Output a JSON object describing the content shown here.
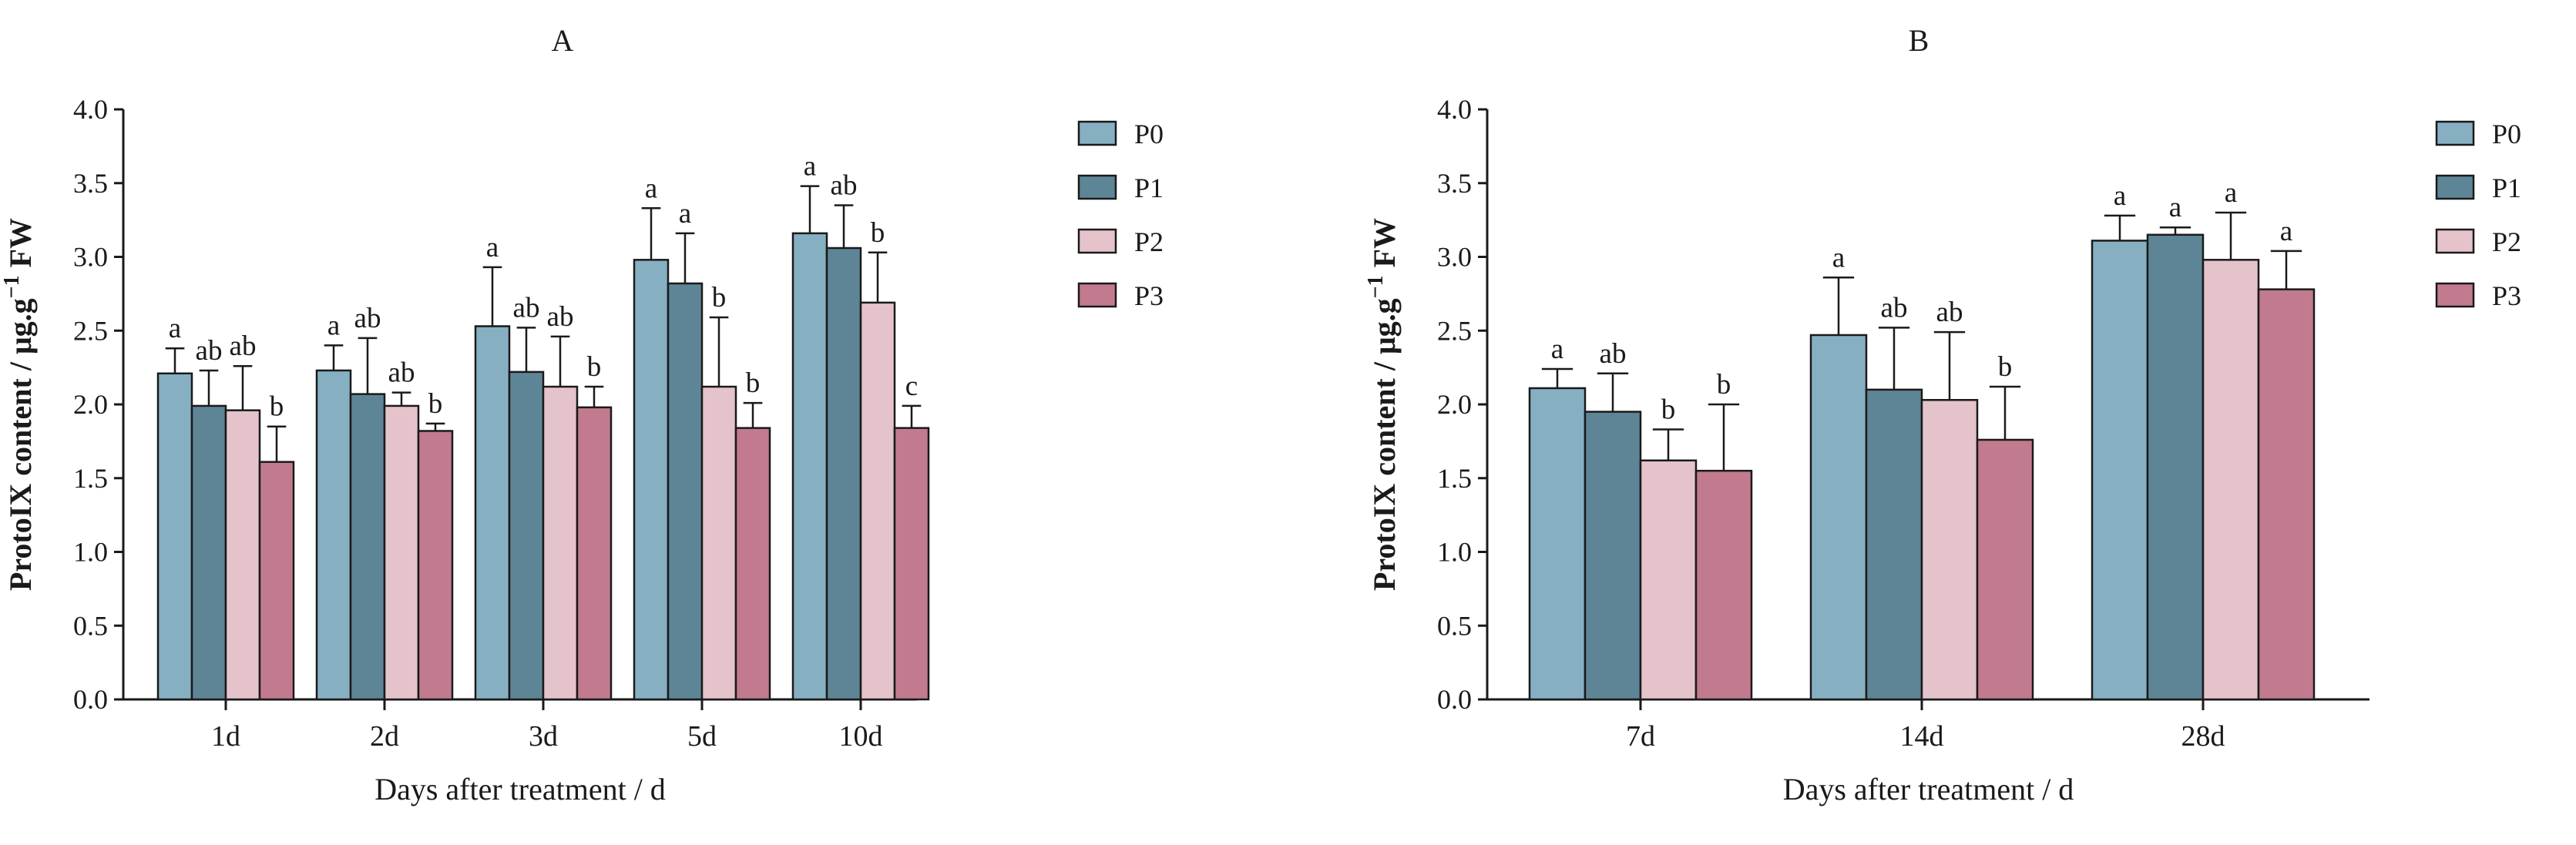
{
  "chart_data": [
    {
      "type": "bar",
      "title": "A",
      "xlabel": "Days after treatment / d",
      "ylabel": {
        "base": "ProtoIX content / μg.g",
        "superscript": "−1",
        "suffix": " FW"
      },
      "ylim": [
        0,
        4.0
      ],
      "yticks": [
        "0.0",
        "0.5",
        "1.0",
        "1.5",
        "2.0",
        "2.5",
        "3.0",
        "3.5",
        "4.0"
      ],
      "categories": [
        "1d",
        "2d",
        "3d",
        "5d",
        "10d"
      ],
      "series": [
        {
          "name": "P0",
          "color": "#86b0c2",
          "values": [
            2.21,
            2.23,
            2.53,
            2.98,
            3.16
          ],
          "errors": [
            0.17,
            0.17,
            0.4,
            0.35,
            0.32
          ],
          "labels": [
            "a",
            "a",
            "a",
            "a",
            "a"
          ]
        },
        {
          "name": "P1",
          "color": "#5e8596",
          "values": [
            1.99,
            2.07,
            2.22,
            2.82,
            3.06
          ],
          "errors": [
            0.24,
            0.38,
            0.3,
            0.34,
            0.29
          ],
          "labels": [
            "ab",
            "ab",
            "ab",
            "a",
            "ab"
          ]
        },
        {
          "name": "P2",
          "color": "#e4c3ca",
          "values": [
            1.96,
            1.99,
            2.12,
            2.12,
            2.69
          ],
          "errors": [
            0.3,
            0.09,
            0.34,
            0.47,
            0.34
          ],
          "labels": [
            "ab",
            "ab",
            "ab",
            "b",
            "b"
          ]
        },
        {
          "name": "P3",
          "color": "#c27a8f",
          "values": [
            1.61,
            1.82,
            1.98,
            1.84,
            1.84
          ],
          "errors": [
            0.24,
            0.05,
            0.14,
            0.17,
            0.15
          ],
          "labels": [
            "b",
            "b",
            "b",
            "b",
            "c"
          ]
        }
      ]
    },
    {
      "type": "bar",
      "title": "B",
      "xlabel": "Days after treatment / d",
      "ylabel": {
        "base": "ProtoIX content / μg.g",
        "superscript": "−1",
        "suffix": " FW"
      },
      "ylim": [
        0,
        4.0
      ],
      "yticks": [
        "0.0",
        "0.5",
        "1.0",
        "1.5",
        "2.0",
        "2.5",
        "3.0",
        "3.5",
        "4.0"
      ],
      "categories": [
        "7d",
        "14d",
        "28d"
      ],
      "series": [
        {
          "name": "P0",
          "color": "#86b0c2",
          "values": [
            2.11,
            2.47,
            3.11
          ],
          "errors": [
            0.13,
            0.39,
            0.17
          ],
          "labels": [
            "a",
            "a",
            "a"
          ]
        },
        {
          "name": "P1",
          "color": "#5e8596",
          "values": [
            1.95,
            2.1,
            3.15
          ],
          "errors": [
            0.26,
            0.42,
            0.05
          ],
          "labels": [
            "ab",
            "ab",
            "a"
          ]
        },
        {
          "name": "P2",
          "color": "#e4c3ca",
          "values": [
            1.62,
            2.03,
            2.98
          ],
          "errors": [
            0.21,
            0.46,
            0.32
          ],
          "labels": [
            "b",
            "ab",
            "a"
          ]
        },
        {
          "name": "P3",
          "color": "#c27a8f",
          "values": [
            1.55,
            1.76,
            2.78
          ],
          "errors": [
            0.45,
            0.36,
            0.26
          ],
          "labels": [
            "b",
            "b",
            "a"
          ]
        }
      ]
    }
  ]
}
